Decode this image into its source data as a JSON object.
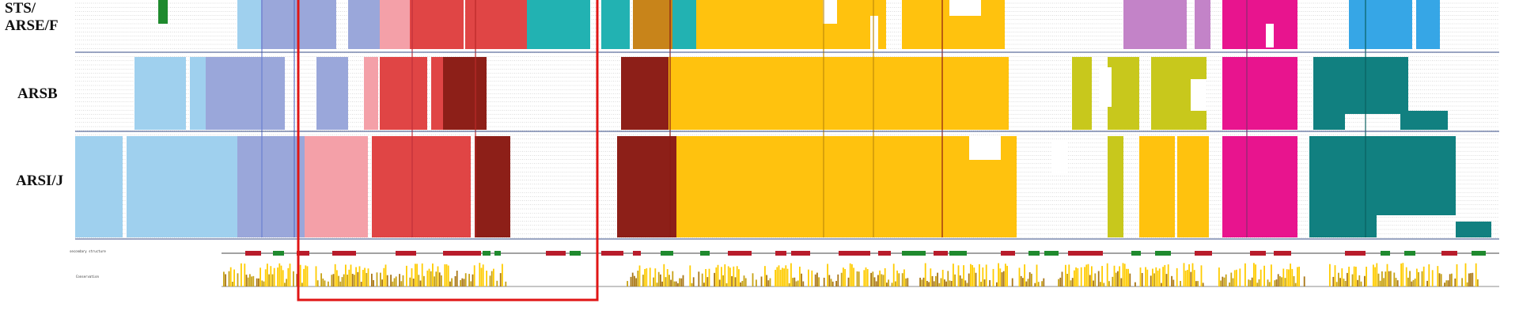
{
  "groups": {
    "sts": {
      "line1": "STS/",
      "line2": "ARSE/F"
    },
    "arsb": {
      "label": "ARSB"
    },
    "arsij": {
      "label": "ARSI/J"
    }
  },
  "tracks": {
    "secondary": "secondary structure",
    "conservation": "Conservation"
  },
  "colors": {
    "background": "#ffffff",
    "light_blue": "#9fd0ee",
    "lavender": "#9aa7da",
    "pink_light": "#f4a0a8",
    "red": "#e04545",
    "dark_red": "#8d1f18",
    "orange_brown": "#c8841a",
    "gold": "#ffc20e",
    "olive": "#c8c81c",
    "teal": "#22b2b2",
    "dark_teal": "#118080",
    "orchid": "#c383c8",
    "magenta": "#e8148e",
    "sky": "#36a6e6",
    "green_helix": "#1f8a2e",
    "red_helix": "#b81c2b",
    "highlight_box": "#e01515",
    "separator": "#3a4f8a"
  }
}
